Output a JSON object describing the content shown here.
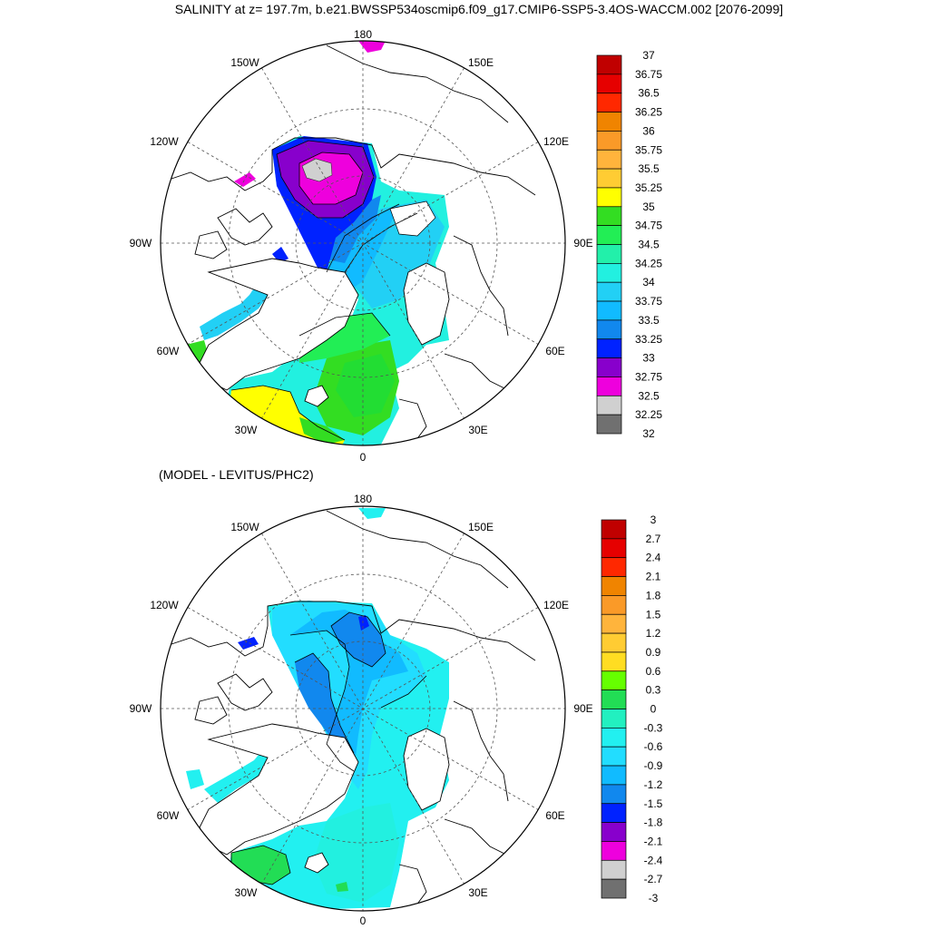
{
  "main_title": "SALINITY at z= 197.7m, b.e21.BWSSP534oscmip6.f09_g17.CMIP6-SSP5-3.4OS-WACCM.002 [2076-2099]",
  "diff_title": "(MODEL - LEVITUS/PHC2)",
  "lon_labels": {
    "top": "180",
    "bottom": "0",
    "upper_left": "150W",
    "upper_right": "150E",
    "mid_upper_left": "120W",
    "mid_upper_right": "120E",
    "left": "90W",
    "right": "90E",
    "lower_left": "60W",
    "lower_right": "60E",
    "bottom_left": "30W",
    "bottom_right": "30E"
  },
  "colorbar1": {
    "labels": [
      "37",
      "36.75",
      "36.5",
      "36.25",
      "36",
      "35.75",
      "35.5",
      "35.25",
      "35",
      "34.75",
      "34.5",
      "34.25",
      "34",
      "33.75",
      "33.5",
      "33.25",
      "33",
      "32.75",
      "32.5",
      "32.25",
      "32"
    ],
    "colors": [
      "#c00000",
      "#e60000",
      "#ff2800",
      "#f08400",
      "#fa9a28",
      "#ffb43c",
      "#ffcc33",
      "#ffff00",
      "#33dd22",
      "#22ee55",
      "#22f0aa",
      "#22f0e0",
      "#22d0f5",
      "#11bbff",
      "#1188ee",
      "#0022ff",
      "#8800cc",
      "#ee00dd",
      "#d0d0d0",
      "#707070"
    ]
  },
  "colorbar2": {
    "labels": [
      "3",
      "2.7",
      "2.4",
      "2.1",
      "1.8",
      "1.5",
      "1.2",
      "0.9",
      "0.6",
      "0.3",
      "0",
      "-0.3",
      "-0.6",
      "-0.9",
      "-1.2",
      "-1.5",
      "-1.8",
      "-2.1",
      "-2.4",
      "-2.7",
      "-3"
    ],
    "colors": [
      "#c00000",
      "#e60000",
      "#ff2800",
      "#f08400",
      "#fa9a28",
      "#ffb43c",
      "#ffcc33",
      "#ffdd22",
      "#66ff00",
      "#22dd55",
      "#22f0c0",
      "#22f0f0",
      "#22ddff",
      "#11bbff",
      "#1188ee",
      "#0022ff",
      "#8800cc",
      "#ee00dd",
      "#d0d0d0",
      "#707070"
    ]
  }
}
